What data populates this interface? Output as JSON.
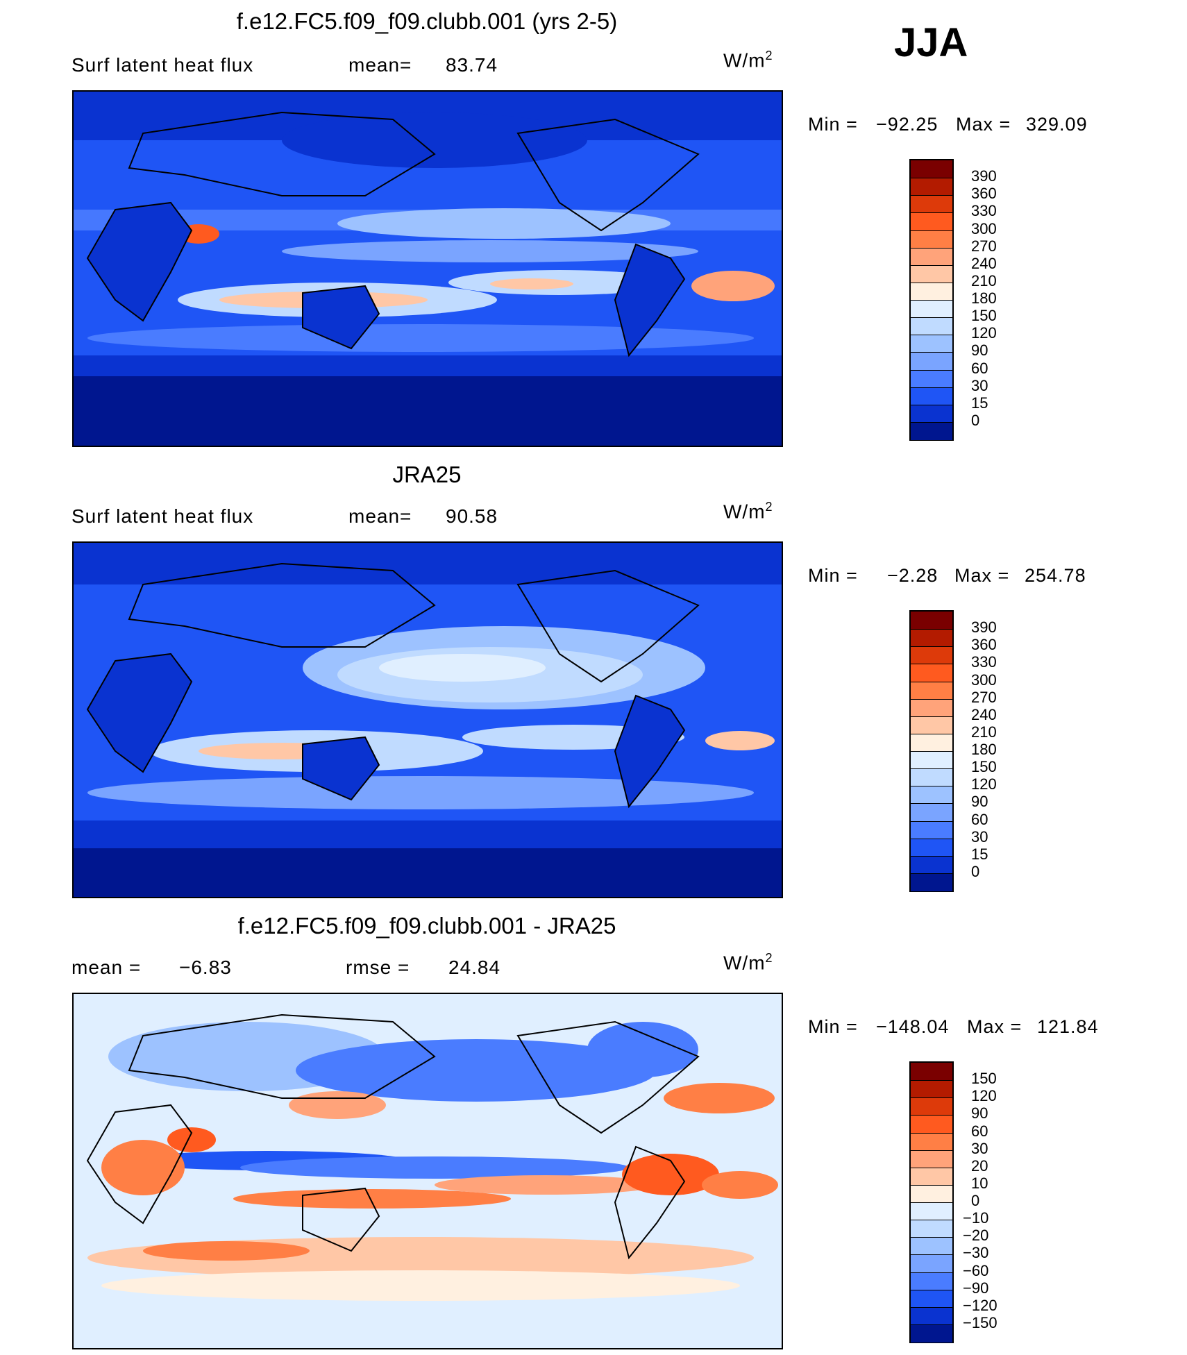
{
  "season": "JJA",
  "panels": [
    {
      "title": "f.e12.FC5.f09_f09.clubb.001 (yrs 2-5)",
      "left_label": "Surf  latent  heat  flux",
      "mid_label": "mean=",
      "mid_value": "83.74",
      "units": "W/m",
      "units_sup": "2",
      "min_label": "Min  =",
      "min_value": "−92.25",
      "max_label": "Max  =",
      "max_value": "329.09",
      "colorbar": {
        "labels": [
          "390",
          "360",
          "330",
          "300",
          "270",
          "240",
          "210",
          "180",
          "150",
          "120",
          "90",
          "60",
          "30",
          "15",
          "0"
        ],
        "colors": [
          "#7a0000",
          "#b31b00",
          "#dd3a0a",
          "#ff5a1f",
          "#ff7f45",
          "#ffa37a",
          "#ffc7a6",
          "#fff0e0",
          "#e0efff",
          "#c0dbff",
          "#9dc2ff",
          "#7aa4ff",
          "#4a7cff",
          "#1f55f5",
          "#0a33d0",
          "#00168f"
        ]
      }
    },
    {
      "title": "JRA25",
      "left_label": "Surf  latent  heat  flux",
      "mid_label": "mean=",
      "mid_value": "90.58",
      "units": "W/m",
      "units_sup": "2",
      "min_label": "Min  =",
      "min_value": "−2.28",
      "max_label": "Max  =",
      "max_value": "254.78",
      "colorbar": {
        "labels": [
          "390",
          "360",
          "330",
          "300",
          "270",
          "240",
          "210",
          "180",
          "150",
          "120",
          "90",
          "60",
          "30",
          "15",
          "0"
        ],
        "colors": [
          "#7a0000",
          "#b31b00",
          "#dd3a0a",
          "#ff5a1f",
          "#ff7f45",
          "#ffa37a",
          "#ffc7a6",
          "#fff0e0",
          "#e0efff",
          "#c0dbff",
          "#9dc2ff",
          "#7aa4ff",
          "#4a7cff",
          "#1f55f5",
          "#0a33d0",
          "#00168f"
        ]
      }
    },
    {
      "title": "f.e12.FC5.f09_f09.clubb.001 - JRA25",
      "left_label": "mean  =",
      "left_value": "−6.83",
      "mid_label": "rmse  =",
      "mid_value": "24.84",
      "units": "W/m",
      "units_sup": "2",
      "min_label": "Min  =",
      "min_value": "−148.04",
      "max_label": "Max  =",
      "max_value": "121.84",
      "colorbar": {
        "labels": [
          "150",
          "120",
          "90",
          "60",
          "30",
          "20",
          "10",
          "0",
          "−10",
          "−20",
          "−30",
          "−60",
          "−90",
          "−120",
          "−150"
        ],
        "colors": [
          "#7a0000",
          "#b31b00",
          "#dd3a0a",
          "#ff5a1f",
          "#ff7f45",
          "#ffa37a",
          "#ffc7a6",
          "#fff0e0",
          "#e0efff",
          "#c0dbff",
          "#9dc2ff",
          "#7aa4ff",
          "#4a7cff",
          "#1f55f5",
          "#0a33d0",
          "#00168f"
        ]
      }
    }
  ],
  "chart_data": [
    {
      "type": "heatmap",
      "title": "f.e12.FC5.f09_f09.clubb.001 (yrs 2-5)",
      "variable": "Surf latent heat flux",
      "units": "W/m2",
      "season": "JJA",
      "mean": 83.74,
      "min": -92.25,
      "max": 329.09,
      "contour_levels": [
        0,
        15,
        30,
        60,
        90,
        120,
        150,
        180,
        210,
        240,
        270,
        300,
        330,
        360,
        390
      ]
    },
    {
      "type": "heatmap",
      "title": "JRA25",
      "variable": "Surf latent heat flux",
      "units": "W/m2",
      "season": "JJA",
      "mean": 90.58,
      "min": -2.28,
      "max": 254.78,
      "contour_levels": [
        0,
        15,
        30,
        60,
        90,
        120,
        150,
        180,
        210,
        240,
        270,
        300,
        330,
        360,
        390
      ]
    },
    {
      "type": "heatmap",
      "title": "f.e12.FC5.f09_f09.clubb.001 - JRA25",
      "units": "W/m2",
      "season": "JJA",
      "mean": -6.83,
      "rmse": 24.84,
      "min": -148.04,
      "max": 121.84,
      "contour_levels": [
        -150,
        -120,
        -90,
        -60,
        -30,
        -20,
        -10,
        0,
        10,
        20,
        30,
        60,
        90,
        120,
        150
      ]
    }
  ]
}
